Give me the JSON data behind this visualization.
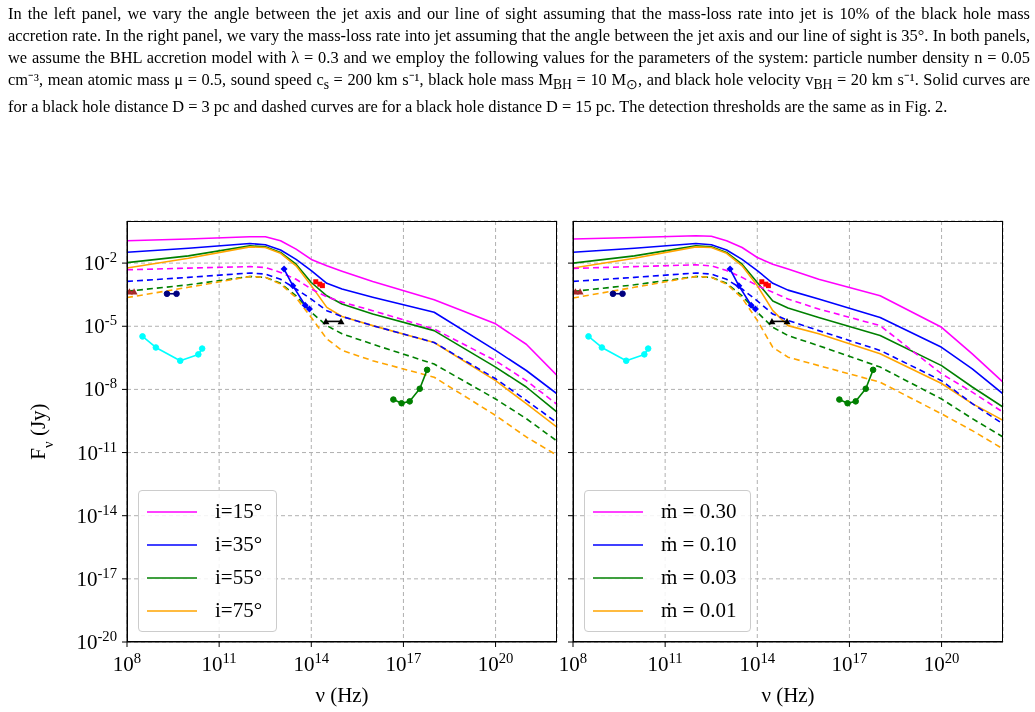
{
  "chart_data": [
    {
      "type": "line",
      "annotations": [
        "In the left panel, we vary the angle between the jet axis and our line of sight assuming that the mass-loss rate into jet is 10% of the black hole mass accretion rate. In the right panel, we vary the mass-loss rate into jet assuming that the angle between the jet axis and our line of sight is 35°. In both panels, we assume the BHL accretion model with λ = 0.3 and we employ the following values for the parameters of the system: particle number density n = 0.05 cm⁻³, mean atomic mass μ = 0.5, sound speed c$_{s}$ = 200 km s⁻¹, black hole mass M$_{BH}$ = 10 M$_{⊙}$, and black hole velocity v$_{BH}$ = 20 km s⁻¹. Solid curves are for a black hole distance D = 3 pc and dashed curves are for a black hole distance D = 15 pc. The detection thresholds are the same as in Fig. 2."
      ],
      "xlabel": "ν (Hz)",
      "ylabel": "F$_{ν}$ (Jy)",
      "log": "xy",
      "grid": true,
      "legend": "bottom left",
      "marker": "none",
      "line_style": "solid",
      "xlim": [
        100000000.0,
        1e+22
      ],
      "xticks": [
        {
          "value": 100000000.0,
          "label": "10$^{8}$"
        },
        {
          "value": 100000000000.0,
          "label": "10$^{11}$"
        },
        {
          "value": 100000000000000.0,
          "label": "10$^{14}$"
        },
        {
          "value": 1e+17,
          "label": "10$^{17}$"
        },
        {
          "value": 1e+20,
          "label": "10$^{20}$"
        }
      ],
      "ylim": [
        1e-20,
        1
      ],
      "yticks": [
        {
          "value": 1e-20,
          "label": "10$^{-20}$"
        },
        {
          "value": 1e-17,
          "label": "10$^{-17}$"
        },
        {
          "value": 1e-14,
          "label": "10$^{-14}$"
        },
        {
          "value": 1e-11,
          "label": "10$^{-11}$"
        },
        {
          "value": 1e-08,
          "label": "10$^{-8}$"
        },
        {
          "value": 1e-05,
          "label": "10$^{-5}$"
        },
        {
          "value": 0.01,
          "label": "10$^{-2}$"
        }
      ],
      "x": [
        100000000.0,
        10000000000.0,
        1000000000000.0,
        3200000000000.0,
        10000000000000.0,
        32000000000000.0,
        100000000000000.0,
        320000000000000.0,
        1000000000000000.0,
        1e+16,
        1e+18,
        1e+20,
        1e+21,
        1e+22
      ],
      "series": [
        {
          "name": "i=15°",
          "color": "#ff00ff",
          "values": [
            0.115,
            0.14,
            0.18,
            0.18,
            0.115,
            0.046,
            0.015,
            0.0074,
            0.0041,
            0.00135,
            0.00018,
            1.3e-05,
            1.4e-06,
            4.6e-08
          ]
        },
        {
          "name": "i=35°",
          "color": "#0000ff",
          "values": [
            0.033,
            0.051,
            0.085,
            0.074,
            0.042,
            0.015,
            0.0044,
            0.0011,
            0.00059,
            0.00024,
            4.6e-05,
            7.1e-07,
            7.9e-08,
            6.2e-09
          ]
        },
        {
          "name": "i=55°",
          "color": "#008000",
          "values": [
            0.0105,
            0.022,
            0.066,
            0.059,
            0.032,
            0.0089,
            0.0012,
            0.00028,
            0.000115,
            3.8e-05,
            6.2e-06,
            1.15e-07,
            1.3e-08,
            8.3e-10
          ]
        },
        {
          "name": "i=75°",
          "color": "#ffa500",
          "values": [
            0.0058,
            0.017,
            0.059,
            0.055,
            0.029,
            0.0074,
            0.00085,
            7.9e-05,
            2.9e-05,
            1.07e-05,
            1.7e-06,
            2.6e-08,
            2.1e-09,
            1.6e-10
          ]
        },
        {
          "color": "#ff00ff",
          "line_style": "dashed",
          "values": [
            0.0048,
            0.0058,
            0.0068,
            0.0062,
            0.0036,
            0.0017,
            0.00059,
            0.00025,
            0.00014,
            5.5e-05,
            7.4e-06,
            2.3e-07,
            2.6e-08,
            1.95e-09
          ]
        },
        {
          "color": "#0000ff",
          "line_style": "dashed",
          "values": [
            0.00135,
            0.0021,
            0.0034,
            0.003,
            0.0017,
            0.00059,
            0.000195,
            5.5e-05,
            2.9e-05,
            1.07e-05,
            1.7e-06,
            3.2e-08,
            3e-09,
            2.6e-10
          ]
        },
        {
          "color": "#008000",
          "line_style": "dashed",
          "values": [
            0.00046,
            0.00093,
            0.0023,
            0.0021,
            0.0011,
            0.00028,
            4.6e-05,
            1.07e-05,
            4.4e-06,
            1.4e-06,
            1.6e-07,
            3.5e-09,
            4.1e-10,
            3.5e-11
          ]
        },
        {
          "color": "#ffa500",
          "line_style": "dashed",
          "values": [
            0.00023,
            0.00071,
            0.0023,
            0.0021,
            0.001,
            0.00023,
            2.6e-05,
            2.5e-06,
            7.1e-07,
            2.3e-07,
            3.8e-08,
            5.8e-10,
            5.5e-11,
            7.4e-12
          ]
        },
        {
          "color": "#00ffff",
          "marker": "circle",
          "x": [
            320000000.0,
            870000000.0,
            5400000000.0,
            21000000000.0,
            28000000000.0
          ],
          "values": [
            3.3e-06,
            9.8e-07,
            2.3e-07,
            4.6e-07,
            8.7e-07
          ]
        },
        {
          "color": "#000080",
          "marker": "circle",
          "x": [
            2000000000.0,
            4100000000.0
          ],
          "values": [
            0.00035,
            0.00035
          ]
        },
        {
          "color": "#a52a2a",
          "marker": "triangle",
          "x": [
            120000000.0,
            170000000.0
          ],
          "values": [
            0.00044,
            0.00044
          ]
        },
        {
          "color": "#0000ff",
          "marker": "diamond",
          "x": [
            13000000000000.0,
            25000000000000.0,
            63000000000000.0,
            87000000000000.0
          ],
          "values": [
            0.0052,
            0.00085,
            0.0001,
            6.6e-05
          ]
        },
        {
          "type": "scatter",
          "color": "#ff0000",
          "marker": "square",
          "x": [
            140000000000000.0,
            190000000000000.0,
            230000000000000.0
          ],
          "values": [
            0.0013,
            0.001,
            0.00085
          ]
        },
        {
          "color": "#000000",
          "marker": "triangle",
          "x": [
            300000000000000.0,
            930000000000000.0
          ],
          "values": [
            1.7e-05,
            1.7e-05
          ]
        },
        {
          "color": "#008000",
          "marker": "circle",
          "x": [
            4.7e+16,
            8.7e+16,
            1.6e+17,
            3.4e+17,
            5.9e+17
          ],
          "values": [
            3.3e-09,
            2.2e-09,
            2.7e-09,
            1.07e-08,
            8.5e-08
          ]
        }
      ]
    },
    {
      "type": "line",
      "xlabel": "ν (Hz)",
      "log": "xy",
      "grid": true,
      "legend": "bottom left",
      "marker": "none",
      "line_style": "solid",
      "tick_labels": "x",
      "xlim": [
        100000000.0,
        1e+22
      ],
      "xticks": [
        {
          "value": 100000000.0,
          "label": "10$^{8}$"
        },
        {
          "value": 100000000000.0,
          "label": "10$^{11}$"
        },
        {
          "value": 100000000000000.0,
          "label": "10$^{14}$"
        },
        {
          "value": 1e+17,
          "label": "10$^{17}$"
        },
        {
          "value": 1e+20,
          "label": "10$^{20}$"
        }
      ],
      "ylim": [
        1e-20,
        1
      ],
      "yticks": [
        {
          "value": 1e-20,
          "label": null
        },
        {
          "value": 1e-17,
          "label": null
        },
        {
          "value": 1e-14,
          "label": null
        },
        {
          "value": 1e-11,
          "label": null
        },
        {
          "value": 1e-08,
          "label": null
        },
        {
          "value": 1e-05,
          "label": null
        },
        {
          "value": 0.01,
          "label": null
        }
      ],
      "x": [
        100000000.0,
        10000000000.0,
        1000000000000.0,
        3200000000000.0,
        10000000000000.0,
        32000000000000.0,
        100000000000000.0,
        320000000000000.0,
        1000000000000000.0,
        1e+16,
        1e+18,
        1e+20,
        1e+21,
        1e+22
      ],
      "series": [
        {
          "name": "ṁ = 0.30",
          "color": "#ff00ff",
          "values": [
            0.14,
            0.165,
            0.2,
            0.19,
            0.115,
            0.055,
            0.0185,
            0.0089,
            0.0052,
            0.0017,
            0.00028,
            8.9e-06,
            4.9e-07,
            2.2e-08
          ]
        },
        {
          "name": "ṁ = 0.10",
          "color": "#0000ff",
          "values": [
            0.033,
            0.051,
            0.085,
            0.074,
            0.042,
            0.015,
            0.0044,
            0.0011,
            0.00052,
            0.000195,
            2.6e-05,
            1e-06,
            9.5e-08,
            6.2e-09
          ]
        },
        {
          "name": "ṁ = 0.03",
          "color": "#008000",
          "values": [
            0.01,
            0.022,
            0.066,
            0.059,
            0.032,
            0.0089,
            0.0012,
            0.00016,
            7.4e-05,
            2.6e-05,
            3.6e-06,
            1.35e-07,
            1.3e-08,
            1.45e-09
          ]
        },
        {
          "name": "ṁ = 0.01",
          "color": "#ffa500",
          "values": [
            0.0058,
            0.017,
            0.059,
            0.055,
            0.029,
            0.0074,
            0.00085,
            5.5e-05,
            1.07e-05,
            4.4e-06,
            4.9e-07,
            1.9e-08,
            2.1e-09,
            3.4e-10
          ]
        },
        {
          "color": "#ff00ff",
          "line_style": "dashed",
          "values": [
            0.0056,
            0.0068,
            0.0083,
            0.0074,
            0.0044,
            0.0021,
            0.00085,
            0.00041,
            0.000195,
            6.6e-05,
            1.07e-05,
            5.5e-08,
            7.4e-09,
            8.3e-10
          ]
        },
        {
          "color": "#0000ff",
          "line_style": "dashed",
          "values": [
            0.00135,
            0.0021,
            0.0034,
            0.003,
            0.0017,
            0.00059,
            0.00016,
            3.8e-05,
            1.9e-05,
            6.2e-06,
            7.1e-07,
            2.6e-08,
            2.1e-09,
            2.3e-10
          ]
        },
        {
          "color": "#008000",
          "line_style": "dashed",
          "values": [
            0.00045,
            0.00093,
            0.0023,
            0.0021,
            0.0011,
            0.00028,
            4.6e-05,
            8.9e-06,
            3.6e-06,
            1.2e-06,
            1.15e-07,
            3.5e-09,
            4.1e-10,
            5.5e-11
          ]
        },
        {
          "color": "#ffa500",
          "line_style": "dashed",
          "values": [
            0.00022,
            0.00071,
            0.0023,
            0.0021,
            0.001,
            0.00022,
            1.9e-05,
            1e-06,
            3.4e-07,
            1.35e-07,
            2.2e-08,
            6.9e-10,
            1.1e-10,
            1.5e-11
          ]
        },
        {
          "color": "#00ffff",
          "marker": "circle",
          "x": [
            320000000.0,
            870000000.0,
            5400000000.0,
            21000000000.0,
            28000000000.0
          ],
          "values": [
            3.3e-06,
            9.8e-07,
            2.3e-07,
            4.6e-07,
            8.7e-07
          ]
        },
        {
          "color": "#000080",
          "marker": "circle",
          "x": [
            2000000000.0,
            4100000000.0
          ],
          "values": [
            0.00035,
            0.00035
          ]
        },
        {
          "color": "#a52a2a",
          "marker": "triangle",
          "x": [
            120000000.0,
            170000000.0
          ],
          "values": [
            0.00044,
            0.00044
          ]
        },
        {
          "color": "#0000ff",
          "marker": "diamond",
          "x": [
            13000000000000.0,
            25000000000000.0,
            63000000000000.0,
            87000000000000.0
          ],
          "values": [
            0.0052,
            0.00085,
            0.0001,
            6.6e-05
          ]
        },
        {
          "type": "scatter",
          "color": "#ff0000",
          "marker": "square",
          "x": [
            140000000000000.0,
            190000000000000.0,
            230000000000000.0
          ],
          "values": [
            0.0013,
            0.001,
            0.00085
          ]
        },
        {
          "color": "#000000",
          "marker": "triangle",
          "x": [
            300000000000000.0,
            930000000000000.0
          ],
          "values": [
            1.7e-05,
            1.7e-05
          ]
        },
        {
          "color": "#008000",
          "marker": "circle",
          "x": [
            4.7e+16,
            8.7e+16,
            1.6e+17,
            3.4e+17,
            5.9e+17
          ],
          "values": [
            3.3e-09,
            2.2e-09,
            2.7e-09,
            1.07e-08,
            8.5e-08
          ]
        }
      ]
    }
  ]
}
